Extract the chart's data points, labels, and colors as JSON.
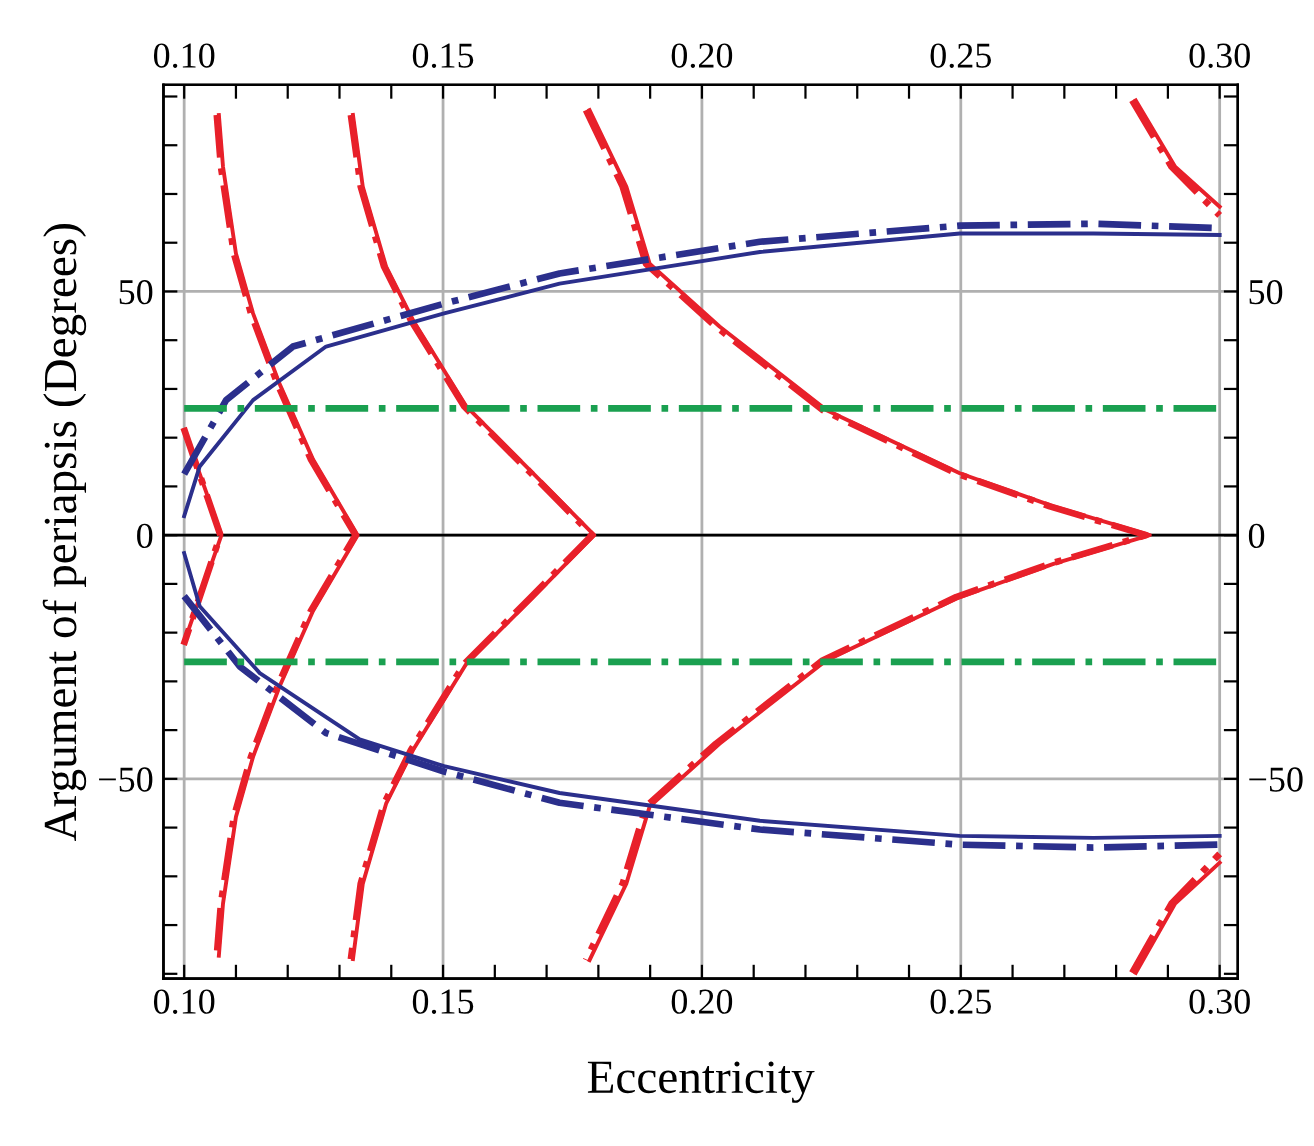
{
  "chart_data": {
    "type": "line",
    "xlabel": "Eccentricity",
    "ylabel": "Argument of periapsis (Degrees)",
    "xlim": [
      0.096,
      0.3035
    ],
    "ylim": [
      -91,
      92.4
    ],
    "x2lim": [
      0.096,
      0.3035
    ],
    "y2lim": [
      -91,
      92.4
    ],
    "xticks": [
      {
        "value": 0.1,
        "label": "0.10"
      },
      {
        "value": 0.11,
        "label": null
      },
      {
        "value": 0.12,
        "label": null
      },
      {
        "value": 0.13,
        "label": null
      },
      {
        "value": 0.14,
        "label": null
      },
      {
        "value": 0.15,
        "label": "0.15"
      },
      {
        "value": 0.16,
        "label": null
      },
      {
        "value": 0.17,
        "label": null
      },
      {
        "value": 0.18,
        "label": null
      },
      {
        "value": 0.19,
        "label": null
      },
      {
        "value": 0.2,
        "label": "0.20"
      },
      {
        "value": 0.21,
        "label": null
      },
      {
        "value": 0.22,
        "label": null
      },
      {
        "value": 0.23,
        "label": null
      },
      {
        "value": 0.24,
        "label": null
      },
      {
        "value": 0.25,
        "label": "0.25"
      },
      {
        "value": 0.26,
        "label": null
      },
      {
        "value": 0.27,
        "label": null
      },
      {
        "value": 0.28,
        "label": null
      },
      {
        "value": 0.29,
        "label": null
      },
      {
        "value": 0.3,
        "label": "0.30"
      }
    ],
    "x2ticks": [
      {
        "value": 0.1,
        "label": "0.10"
      },
      {
        "value": 0.11,
        "label": null
      },
      {
        "value": 0.12,
        "label": null
      },
      {
        "value": 0.13,
        "label": null
      },
      {
        "value": 0.14,
        "label": null
      },
      {
        "value": 0.15,
        "label": "0.15"
      },
      {
        "value": 0.16,
        "label": null
      },
      {
        "value": 0.17,
        "label": null
      },
      {
        "value": 0.18,
        "label": null
      },
      {
        "value": 0.19,
        "label": null
      },
      {
        "value": 0.2,
        "label": "0.20"
      },
      {
        "value": 0.21,
        "label": null
      },
      {
        "value": 0.22,
        "label": null
      },
      {
        "value": 0.23,
        "label": null
      },
      {
        "value": 0.24,
        "label": null
      },
      {
        "value": 0.25,
        "label": "0.25"
      },
      {
        "value": 0.26,
        "label": null
      },
      {
        "value": 0.27,
        "label": null
      },
      {
        "value": 0.28,
        "label": null
      },
      {
        "value": 0.29,
        "label": null
      },
      {
        "value": 0.3,
        "label": "0.30"
      }
    ],
    "yticks": [
      {
        "value": -90,
        "label": null
      },
      {
        "value": -80,
        "label": null
      },
      {
        "value": -70,
        "label": null
      },
      {
        "value": -60,
        "label": null
      },
      {
        "value": -50,
        "label": "−50"
      },
      {
        "value": -40,
        "label": null
      },
      {
        "value": -30,
        "label": null
      },
      {
        "value": -20,
        "label": null
      },
      {
        "value": -10,
        "label": null
      },
      0,
      {
        "value": 10,
        "label": null
      },
      {
        "value": 20,
        "label": null
      },
      {
        "value": 30,
        "label": null
      },
      {
        "value": 40,
        "label": null
      },
      50,
      {
        "value": 60,
        "label": null
      },
      {
        "value": 70,
        "label": null
      },
      {
        "value": 80,
        "label": null
      },
      {
        "value": 90,
        "label": null
      }
    ],
    "y2ticks": [
      {
        "value": -90,
        "label": null
      },
      {
        "value": -80,
        "label": null
      },
      {
        "value": -70,
        "label": null
      },
      {
        "value": -60,
        "label": null
      },
      {
        "value": -50,
        "label": "−50"
      },
      {
        "value": -40,
        "label": null
      },
      {
        "value": -30,
        "label": null
      },
      {
        "value": -20,
        "label": null
      },
      {
        "value": -10,
        "label": null
      },
      0,
      {
        "value": 10,
        "label": null
      },
      {
        "value": 20,
        "label": null
      },
      {
        "value": 30,
        "label": null
      },
      {
        "value": 40,
        "label": null
      },
      50,
      {
        "value": 60,
        "label": null
      },
      {
        "value": 70,
        "label": null
      },
      {
        "value": 80,
        "label": null
      },
      {
        "value": 90,
        "label": null
      }
    ],
    "grid": true,
    "legend": false,
    "ref_lines": [
      {
        "axis": "y",
        "value": 0,
        "color": "#000000"
      }
    ],
    "series": [
      {
        "color": "#e8202a",
        "line_style": "solid",
        "x": [
          0.1,
          0.1072,
          0.1
        ],
        "values": [
          21.6,
          0,
          -22
        ]
      },
      {
        "color": "#e8202a",
        "line_style": "dashdot",
        "x": [
          0.0999,
          0.107,
          0.0999
        ],
        "values": [
          22,
          0,
          -22.5
        ]
      },
      {
        "color": "#e8202a",
        "line_style": "solid",
        "x": [
          0.1067,
          0.1075,
          0.11,
          0.1133,
          0.1184,
          0.1249,
          0.1335,
          0.1249,
          0.1184,
          0.1133,
          0.11,
          0.1075,
          0.1067
        ],
        "values": [
          86.2,
          75.6,
          57.8,
          45.5,
          31.1,
          15.5,
          0,
          -15.5,
          -31.1,
          -45.5,
          -57.8,
          -75.6,
          -86.3
        ]
      },
      {
        "color": "#e8202a",
        "line_style": "dashdot",
        "x": [
          0.1063,
          0.1071,
          0.1096,
          0.1129,
          0.118,
          0.1245,
          0.1331,
          0.1245,
          0.118,
          0.1129,
          0.1096,
          0.1071,
          0.1063
        ],
        "values": [
          86.2,
          75.6,
          57.8,
          45.5,
          31.1,
          15.5,
          0,
          -15.5,
          -31.1,
          -45.5,
          -57.8,
          -75.6,
          -86.3
        ]
      },
      {
        "color": "#e8202a",
        "line_style": "solid",
        "x": [
          0.1326,
          0.1345,
          0.139,
          0.1442,
          0.1545,
          0.1674,
          0.1792,
          0.1674,
          0.1545,
          0.1442,
          0.139,
          0.1345,
          0.1326
        ],
        "values": [
          86.2,
          71.5,
          55.1,
          44.1,
          26.4,
          12.7,
          0,
          -12.7,
          -26.4,
          -44.1,
          -55.1,
          -71.5,
          -87
        ]
      },
      {
        "color": "#e8202a",
        "line_style": "dashdot",
        "x": [
          0.1322,
          0.1341,
          0.1386,
          0.1438,
          0.1541,
          0.167,
          0.1788,
          0.167,
          0.1541,
          0.1438,
          0.1386,
          0.1341,
          0.1322
        ],
        "values": [
          86.2,
          71.5,
          55.1,
          44.1,
          26.4,
          12.7,
          0,
          -12.7,
          -26.4,
          -44.1,
          -55.1,
          -71.5,
          -87
        ]
      },
      {
        "color": "#e8202a",
        "line_style": "solid",
        "x": [
          0.1783,
          0.1854,
          0.1899,
          0.2034,
          0.224,
          0.2498,
          0.2679,
          0.2865,
          0.2679,
          0.2498,
          0.224,
          0.2034,
          0.1899,
          0.1854,
          0.1783
        ],
        "values": [
          87.2,
          71.5,
          55.7,
          42.8,
          25.7,
          12.7,
          5.9,
          0,
          -5.9,
          -12.7,
          -25.7,
          -42.8,
          -55.7,
          -71.5,
          -87.2
        ]
      },
      {
        "color": "#e8202a",
        "line_style": "dashdot",
        "x": [
          0.1776,
          0.1847,
          0.1892,
          0.2027,
          0.2233,
          0.2491,
          0.2672,
          0.2858,
          0.2672,
          0.2491,
          0.2233,
          0.2027,
          0.1892,
          0.1847,
          0.1776
        ],
        "values": [
          87.2,
          71.5,
          55.7,
          42.8,
          25.7,
          12.7,
          5.9,
          0,
          -5.9,
          -12.7,
          -25.7,
          -42.8,
          -55.7,
          -71.5,
          -87.2
        ]
      },
      {
        "color": "#e8202a",
        "line_style": "solid",
        "x": [
          0.2838,
          0.2914,
          0.3
        ],
        "values": [
          89.2,
          75.6,
          67.4
        ]
      },
      {
        "color": "#e8202a",
        "line_style": "dashdot",
        "x": [
          0.2831,
          0.2907,
          0.3
        ],
        "values": [
          89.2,
          75.6,
          65.6
        ]
      },
      {
        "color": "#e8202a",
        "line_style": "solid",
        "x": [
          0.2838,
          0.2914,
          0.3
        ],
        "values": [
          -89.8,
          -75.6,
          -67.2
        ]
      },
      {
        "color": "#e8202a",
        "line_style": "dashdot",
        "x": [
          0.2831,
          0.2907,
          0.3
        ],
        "values": [
          -89.8,
          -75.6,
          -65.4
        ]
      },
      {
        "color": "#2b2f8c",
        "line_style": "solid",
        "x": [
          0.1,
          0.103,
          0.1133,
          0.1274,
          0.1502,
          0.1725,
          0.2112,
          0.2498,
          0.2756,
          0.3
        ],
        "values": [
          3.9,
          14.1,
          27.7,
          38.7,
          45.5,
          51.6,
          58.1,
          61.9,
          61.9,
          61.6
        ]
      },
      {
        "color": "#2b2f8c",
        "line_style": "dashdot",
        "x": [
          0.1,
          0.1081,
          0.121,
          0.1502,
          0.1725,
          0.2112,
          0.2498,
          0.2756,
          0.3
        ],
        "values": [
          12.5,
          27.7,
          38.7,
          47.5,
          53.7,
          60.2,
          63.5,
          63.9,
          63.0
        ]
      },
      {
        "color": "#2b2f8c",
        "line_style": "solid",
        "x": [
          0.1,
          0.103,
          0.1146,
          0.1339,
          0.1502,
          0.1725,
          0.2112,
          0.2498,
          0.2756,
          0.3
        ],
        "values": [
          -3.7,
          -14.6,
          -28.3,
          -41.9,
          -47.4,
          -52.9,
          -58.6,
          -61.7,
          -62.1,
          -61.7
        ]
      },
      {
        "color": "#2b2f8c",
        "line_style": "dashdot",
        "x": [
          0.1,
          0.1107,
          0.1274,
          0.1502,
          0.1725,
          0.2112,
          0.2498,
          0.2756,
          0.3
        ],
        "values": [
          -12.5,
          -26.9,
          -40.6,
          -48.5,
          -54.9,
          -60.4,
          -63.5,
          -64.1,
          -63.5
        ]
      },
      {
        "color": "#1aa050",
        "line_style": "dashdot",
        "x": [
          0.1,
          0.3
        ],
        "values": [
          26,
          26
        ]
      },
      {
        "color": "#1aa050",
        "line_style": "dashdot",
        "x": [
          0.1,
          0.3
        ],
        "values": [
          -26,
          -26
        ]
      }
    ]
  }
}
